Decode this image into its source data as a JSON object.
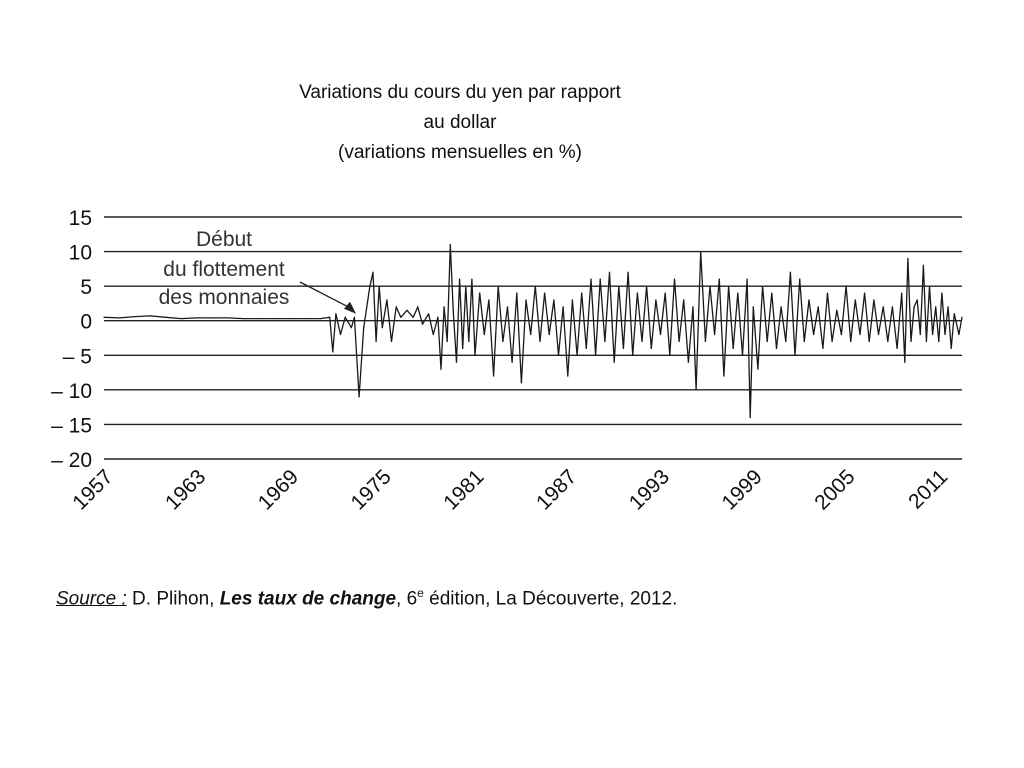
{
  "title": {
    "line1": "Variations du cours du yen par rapport",
    "line2": "au dollar",
    "line3": "(variations mensuelles en %)"
  },
  "source": {
    "label": "Source :",
    "author": "D. Plihon, ",
    "book": "Les taux de change",
    "after_book": ", 6",
    "edition_sup": "e",
    "rest": " édition, La Découverte, 2012."
  },
  "chart_data": {
    "type": "line",
    "title": "Variations du cours du yen par rapport au dollar (variations mensuelles en %)",
    "xlabel": "",
    "ylabel": "",
    "xlim": [
      1957,
      2012.5
    ],
    "ylim": [
      -20,
      15
    ],
    "yticks": [
      15,
      10,
      5,
      0,
      -5,
      -10,
      -15,
      -20
    ],
    "ytick_labels": [
      "15",
      "10",
      "5",
      "0",
      "– 5",
      "– 10",
      "– 15",
      "– 20"
    ],
    "xticks": [
      1957,
      1963,
      1969,
      1975,
      1981,
      1987,
      1993,
      1999,
      2005,
      2011
    ],
    "xtick_labels": [
      "1957",
      "1963",
      "1969",
      "1975",
      "1981",
      "1987",
      "1993",
      "1999",
      "2005",
      "2011"
    ],
    "grid": "horizontal",
    "annotation": {
      "lines": [
        "Début",
        "du flottement",
        "des monnaies"
      ],
      "x": 1973.3,
      "y": 1
    },
    "series": [
      {
        "values": [
          [
            1957.0,
            0.5
          ],
          [
            1958.0,
            0.4
          ],
          [
            1959.0,
            0.6
          ],
          [
            1960.0,
            0.7
          ],
          [
            1961.0,
            0.5
          ],
          [
            1962.0,
            0.3
          ],
          [
            1963.0,
            0.4
          ],
          [
            1964.0,
            0.4
          ],
          [
            1965.0,
            0.4
          ],
          [
            1966.0,
            0.3
          ],
          [
            1967.0,
            0.3
          ],
          [
            1968.0,
            0.3
          ],
          [
            1969.0,
            0.3
          ],
          [
            1970.0,
            0.3
          ],
          [
            1971.0,
            0.3
          ],
          [
            1971.6,
            0.5
          ],
          [
            1971.8,
            -4.5
          ],
          [
            1972.0,
            1.0
          ],
          [
            1972.3,
            -2.0
          ],
          [
            1972.6,
            0.5
          ],
          [
            1973.0,
            -1.0
          ],
          [
            1973.2,
            0.5
          ],
          [
            1973.5,
            -11.0
          ],
          [
            1973.8,
            -1.0
          ],
          [
            1974.0,
            2.0
          ],
          [
            1974.2,
            5.0
          ],
          [
            1974.4,
            7.0
          ],
          [
            1974.6,
            -3.0
          ],
          [
            1974.8,
            5.0
          ],
          [
            1975.0,
            -1.0
          ],
          [
            1975.3,
            3.0
          ],
          [
            1975.6,
            -3.0
          ],
          [
            1975.9,
            2.0
          ],
          [
            1976.2,
            0.5
          ],
          [
            1976.6,
            1.5
          ],
          [
            1977.0,
            0.5
          ],
          [
            1977.3,
            2.0
          ],
          [
            1977.6,
            -0.5
          ],
          [
            1978.0,
            1.0
          ],
          [
            1978.3,
            -2.0
          ],
          [
            1978.6,
            0.5
          ],
          [
            1978.8,
            -7.0
          ],
          [
            1979.0,
            2.0
          ],
          [
            1979.2,
            -3.0
          ],
          [
            1979.4,
            11.0
          ],
          [
            1979.6,
            1.0
          ],
          [
            1979.8,
            -6.0
          ],
          [
            1980.0,
            6.0
          ],
          [
            1980.2,
            -4.0
          ],
          [
            1980.4,
            5.0
          ],
          [
            1980.6,
            -3.0
          ],
          [
            1980.8,
            6.0
          ],
          [
            1981.0,
            -5.0
          ],
          [
            1981.3,
            4.0
          ],
          [
            1981.6,
            -2.0
          ],
          [
            1981.9,
            3.0
          ],
          [
            1982.2,
            -8.0
          ],
          [
            1982.5,
            5.0
          ],
          [
            1982.8,
            -3.0
          ],
          [
            1983.1,
            2.0
          ],
          [
            1983.4,
            -6.0
          ],
          [
            1983.7,
            4.0
          ],
          [
            1984.0,
            -9.0
          ],
          [
            1984.3,
            3.0
          ],
          [
            1984.6,
            -2.0
          ],
          [
            1984.9,
            5.0
          ],
          [
            1985.2,
            -3.0
          ],
          [
            1985.5,
            4.0
          ],
          [
            1985.8,
            -2.0
          ],
          [
            1986.1,
            3.0
          ],
          [
            1986.4,
            -5.0
          ],
          [
            1986.7,
            2.0
          ],
          [
            1987.0,
            -8.0
          ],
          [
            1987.3,
            3.0
          ],
          [
            1987.6,
            -5.0
          ],
          [
            1987.9,
            4.0
          ],
          [
            1988.2,
            -4.0
          ],
          [
            1988.5,
            6.0
          ],
          [
            1988.8,
            -5.0
          ],
          [
            1989.1,
            6.0
          ],
          [
            1989.4,
            -3.0
          ],
          [
            1989.7,
            7.0
          ],
          [
            1990.0,
            -6.0
          ],
          [
            1990.3,
            5.0
          ],
          [
            1990.6,
            -4.0
          ],
          [
            1990.9,
            7.0
          ],
          [
            1991.2,
            -5.0
          ],
          [
            1991.5,
            4.0
          ],
          [
            1991.8,
            -3.0
          ],
          [
            1992.1,
            5.0
          ],
          [
            1992.4,
            -4.0
          ],
          [
            1992.7,
            3.0
          ],
          [
            1993.0,
            -2.0
          ],
          [
            1993.3,
            4.0
          ],
          [
            1993.6,
            -5.0
          ],
          [
            1993.9,
            6.0
          ],
          [
            1994.2,
            -3.0
          ],
          [
            1994.5,
            3.0
          ],
          [
            1994.8,
            -6.0
          ],
          [
            1995.1,
            2.0
          ],
          [
            1995.3,
            -10.0
          ],
          [
            1995.6,
            10.0
          ],
          [
            1995.9,
            -3.0
          ],
          [
            1996.2,
            5.0
          ],
          [
            1996.5,
            -2.0
          ],
          [
            1996.8,
            6.0
          ],
          [
            1997.1,
            -8.0
          ],
          [
            1997.4,
            5.0
          ],
          [
            1997.7,
            -4.0
          ],
          [
            1998.0,
            4.0
          ],
          [
            1998.3,
            -5.0
          ],
          [
            1998.6,
            6.0
          ],
          [
            1998.8,
            -14.0
          ],
          [
            1999.0,
            2.0
          ],
          [
            1999.3,
            -7.0
          ],
          [
            1999.6,
            5.0
          ],
          [
            1999.9,
            -3.0
          ],
          [
            2000.2,
            4.0
          ],
          [
            2000.5,
            -4.0
          ],
          [
            2000.8,
            2.0
          ],
          [
            2001.1,
            -3.0
          ],
          [
            2001.4,
            7.0
          ],
          [
            2001.7,
            -5.0
          ],
          [
            2002.0,
            6.0
          ],
          [
            2002.3,
            -3.0
          ],
          [
            2002.6,
            3.0
          ],
          [
            2002.9,
            -2.0
          ],
          [
            2003.2,
            2.0
          ],
          [
            2003.5,
            -4.0
          ],
          [
            2003.8,
            4.0
          ],
          [
            2004.1,
            -3.0
          ],
          [
            2004.4,
            1.5
          ],
          [
            2004.7,
            -2.0
          ],
          [
            2005.0,
            5.0
          ],
          [
            2005.3,
            -3.0
          ],
          [
            2005.6,
            3.0
          ],
          [
            2005.9,
            -2.0
          ],
          [
            2006.2,
            4.0
          ],
          [
            2006.5,
            -3.0
          ],
          [
            2006.8,
            3.0
          ],
          [
            2007.1,
            -2.0
          ],
          [
            2007.4,
            2.0
          ],
          [
            2007.7,
            -3.0
          ],
          [
            2008.0,
            2.0
          ],
          [
            2008.3,
            -4.0
          ],
          [
            2008.6,
            4.0
          ],
          [
            2008.8,
            -6.0
          ],
          [
            2009.0,
            9.0
          ],
          [
            2009.2,
            -3.0
          ],
          [
            2009.4,
            2.0
          ],
          [
            2009.6,
            3.0
          ],
          [
            2009.8,
            -2.0
          ],
          [
            2010.0,
            8.0
          ],
          [
            2010.2,
            -3.0
          ],
          [
            2010.4,
            5.0
          ],
          [
            2010.6,
            -2.0
          ],
          [
            2010.8,
            2.0
          ],
          [
            2011.0,
            -3.0
          ],
          [
            2011.2,
            4.0
          ],
          [
            2011.4,
            -2.0
          ],
          [
            2011.6,
            2.0
          ],
          [
            2011.8,
            -4.0
          ],
          [
            2012.0,
            1.0
          ],
          [
            2012.3,
            -2.0
          ],
          [
            2012.5,
            0.5
          ]
        ]
      }
    ]
  }
}
